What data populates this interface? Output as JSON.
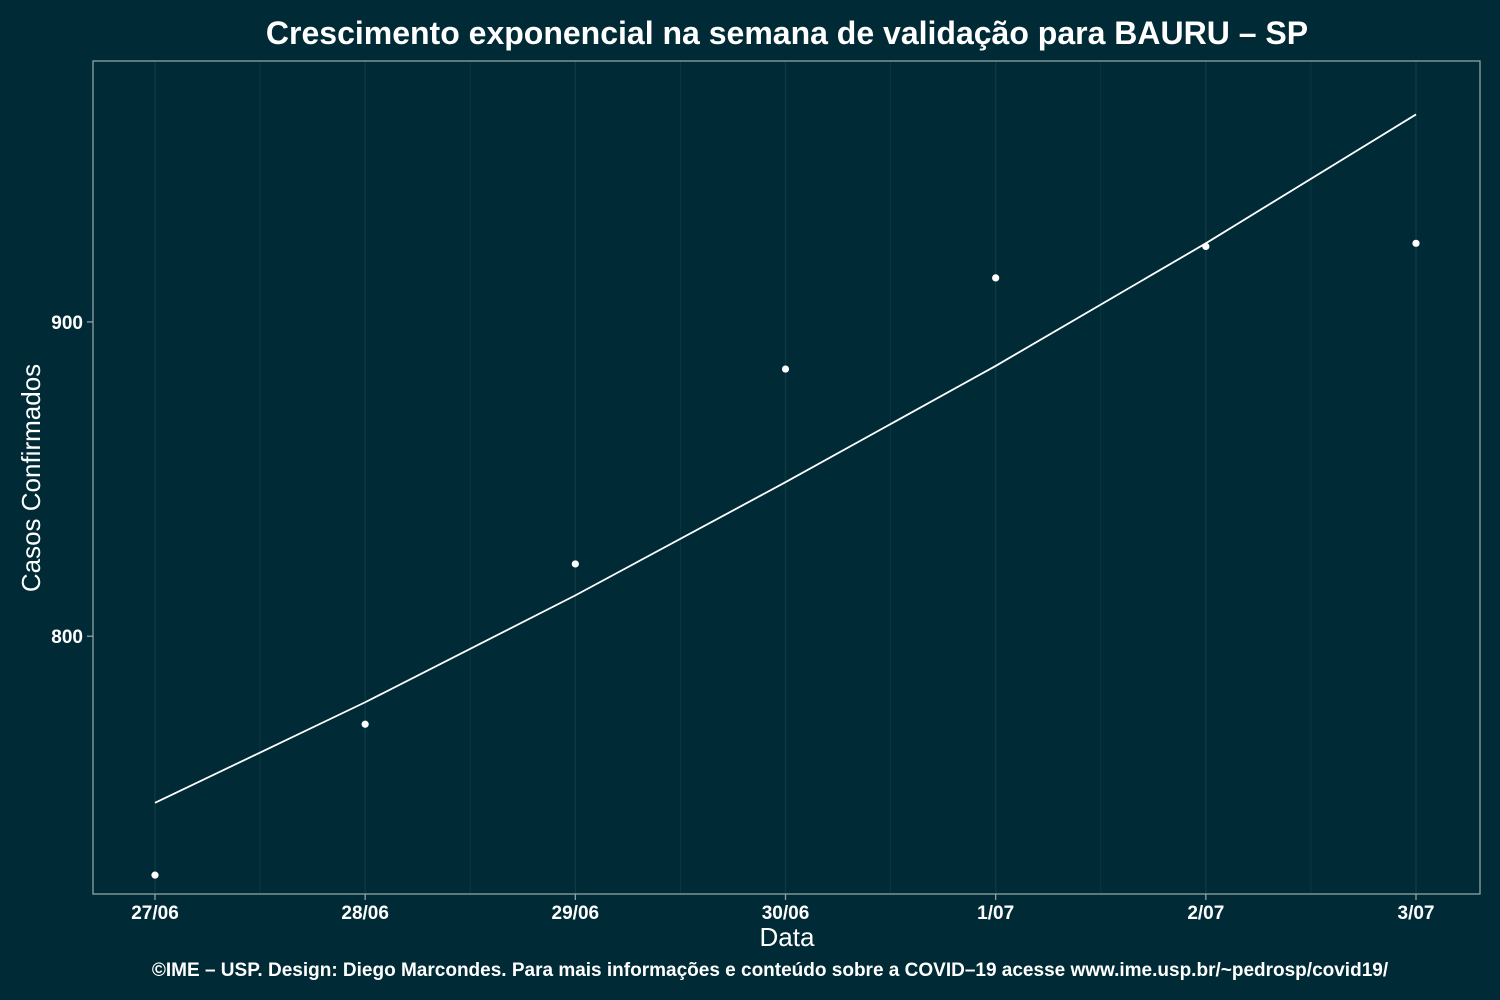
{
  "chart_data": {
    "type": "scatter",
    "title": "Crescimento exponencial na semana de validação para BAURU – SP",
    "xlabel": "Data",
    "ylabel": "Casos Confirmados",
    "categories": [
      "27/06",
      "28/06",
      "29/06",
      "30/06",
      "1/07",
      "2/07",
      "3/07"
    ],
    "series": [
      {
        "type": "scatter",
        "values": [
          724,
          772,
          823,
          885,
          914,
          924,
          925
        ]
      },
      {
        "type": "line",
        "values": [
          747,
          779,
          813,
          849,
          886,
          925,
          966
        ]
      }
    ],
    "ylim": [
      718,
      983
    ],
    "yticks": [
      800,
      900
    ],
    "grid": true,
    "colors": {
      "background": "#002b36",
      "points": "#ffffff",
      "fit_line": "#ffffff",
      "grid": "#0b3a44",
      "border": "#8fa3a6"
    }
  },
  "caption": "©IME – USP. Design: Diego Marcondes. Para mais informações e conteúdo sobre a COVID–19 acesse www.ime.usp.br/~pedrosp/covid19/"
}
